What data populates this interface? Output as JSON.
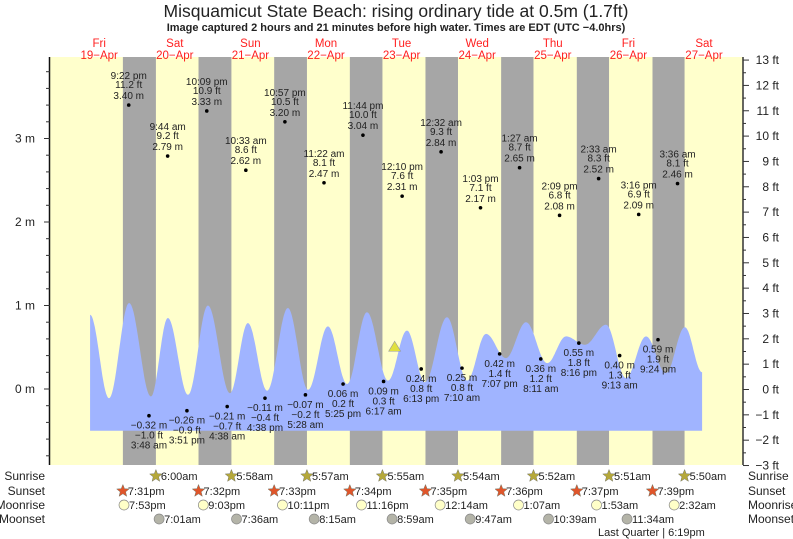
{
  "chart_data": {
    "type": "area",
    "title": "Misquamicut State Beach: rising  ordinary tide at 0.5m (1.7ft)",
    "subtitle": "Image captured 2 hours and 21 minutes before high water. Times are EDT (UTC −4.0hrs)",
    "time_unit": "hours from 20-Apr 00:00 EDT",
    "days": [
      {
        "dow": "Fri",
        "date": "19−Apr"
      },
      {
        "dow": "Sat",
        "date": "20−Apr"
      },
      {
        "dow": "Sun",
        "date": "21−Apr"
      },
      {
        "dow": "Mon",
        "date": "22−Apr"
      },
      {
        "dow": "Tue",
        "date": "23−Apr"
      },
      {
        "dow": "Wed",
        "date": "24−Apr"
      },
      {
        "dow": "Thu",
        "date": "25−Apr"
      },
      {
        "dow": "Fri",
        "date": "26−Apr"
      },
      {
        "dow": "Sat",
        "date": "27−Apr"
      }
    ],
    "y_left": {
      "unit": "m",
      "range": [
        -0.9,
        3.95
      ],
      "ticks": [
        "0 m",
        "1 m",
        "2 m",
        "3 m"
      ],
      "tick_values": [
        0,
        1,
        2,
        3
      ]
    },
    "y_right": {
      "unit": "ft",
      "range": [
        -3,
        13
      ],
      "ticks": [
        "−3 ft",
        "−2 ft",
        "−1 ft",
        "0 ft",
        "1 ft",
        "2 ft",
        "3 ft",
        "4 ft",
        "5 ft",
        "6 ft",
        "7 ft",
        "8 ft",
        "9 ft",
        "10 ft",
        "11 ft",
        "12 ft",
        "13 ft"
      ],
      "tick_values": [
        -3,
        -2,
        -1,
        0,
        1,
        2,
        3,
        4,
        5,
        6,
        7,
        8,
        9,
        10,
        11,
        12,
        13
      ]
    },
    "x_range": [
      -20,
      191
    ],
    "curve_base_m": -0.5,
    "curve_m": [
      [
        -14.9,
        0.89
      ],
      [
        -8.9,
        -0.11
      ],
      [
        -2.5,
        1.03
      ],
      [
        4.4,
        -0.09
      ],
      [
        9.8,
        0.85
      ],
      [
        16.2,
        -0.07
      ],
      [
        22.5,
        1.0
      ],
      [
        29.5,
        -0.05
      ],
      [
        35.2,
        0.79
      ],
      [
        41.3,
        -0.02
      ],
      [
        47.9,
        0.97
      ],
      [
        54.3,
        -0.01
      ],
      [
        60.6,
        0.75
      ],
      [
        66.7,
        0.06
      ],
      [
        73.0,
        0.92
      ],
      [
        79.7,
        0.1
      ],
      [
        85.7,
        0.7
      ],
      [
        91.4,
        0.08
      ],
      [
        98.4,
        0.86
      ],
      [
        104.8,
        0.1
      ],
      [
        110.8,
        0.66
      ],
      [
        117.1,
        0.37
      ],
      [
        123.5,
        0.8
      ],
      [
        130.2,
        0.31
      ],
      [
        136.2,
        0.63
      ],
      [
        142.2,
        0.53
      ],
      [
        148.9,
        0.77
      ],
      [
        155.2,
        0.13
      ],
      [
        161.6,
        0.63
      ],
      [
        167.9,
        0.19
      ],
      [
        173.9,
        0.74
      ],
      [
        179.4,
        0.2
      ]
    ],
    "tides": [
      {
        "type": "high",
        "h": -2.63,
        "time": "9:22 pm",
        "ft": "11.2 ft",
        "m": 3.4,
        "m_label": "3.40 m"
      },
      {
        "type": "low",
        "h": 3.8,
        "time": "3:48 am",
        "ft": "−1.0 ft",
        "m": -0.32,
        "m_label": "−0.32 m"
      },
      {
        "type": "high",
        "h": 9.73,
        "time": "9:44 am",
        "ft": "9.2 ft",
        "m": 2.79,
        "m_label": "2.79 m"
      },
      {
        "type": "low",
        "h": 15.85,
        "time": "3:51 pm",
        "ft": "−0.9 ft",
        "m": -0.26,
        "m_label": "−0.26 m"
      },
      {
        "type": "high",
        "h": 22.15,
        "time": "10:09 pm",
        "ft": "10.9 ft",
        "m": 3.33,
        "m_label": "3.33 m"
      },
      {
        "type": "low",
        "h": 28.63,
        "time": "4:38 am",
        "ft": "−0.7 ft",
        "m": -0.21,
        "m_label": "−0.21 m"
      },
      {
        "type": "high",
        "h": 34.55,
        "time": "10:33 am",
        "ft": "8.6 ft",
        "m": 2.62,
        "m_label": "2.62 m"
      },
      {
        "type": "low",
        "h": 40.63,
        "time": "4:38 pm",
        "ft": "−0.4 ft",
        "m": -0.11,
        "m_label": "−0.11 m"
      },
      {
        "type": "high",
        "h": 46.95,
        "time": "10:57 pm",
        "ft": "10.5 ft",
        "m": 3.2,
        "m_label": "3.20 m"
      },
      {
        "type": "low",
        "h": 53.47,
        "time": "5:28 am",
        "ft": "−0.2 ft",
        "m": -0.07,
        "m_label": "−0.07 m"
      },
      {
        "type": "high",
        "h": 59.37,
        "time": "11:22 am",
        "ft": "8.1 ft",
        "m": 2.47,
        "m_label": "2.47 m"
      },
      {
        "type": "low",
        "h": 65.42,
        "time": "5:25 pm",
        "ft": "0.2 ft",
        "m": 0.06,
        "m_label": "0.06 m"
      },
      {
        "type": "high",
        "h": 71.73,
        "time": "11:44 pm",
        "ft": "10.0 ft",
        "m": 3.04,
        "m_label": "3.04 m"
      },
      {
        "type": "low",
        "h": 78.28,
        "time": "6:17 am",
        "ft": "0.3 ft",
        "m": 0.09,
        "m_label": "0.09 m"
      },
      {
        "type": "high",
        "h": 84.17,
        "time": "12:10 pm",
        "ft": "7.6 ft",
        "m": 2.31,
        "m_label": "2.31 m"
      },
      {
        "type": "low",
        "h": 90.22,
        "time": "6:13 pm",
        "ft": "0.8 ft",
        "m": 0.24,
        "m_label": "0.24 m"
      },
      {
        "type": "high",
        "h": 96.53,
        "time": "12:32 am",
        "ft": "9.3 ft",
        "m": 2.84,
        "m_label": "2.84 m"
      },
      {
        "type": "low",
        "h": 103.17,
        "time": "7:10 am",
        "ft": "0.8 ft",
        "m": 0.25,
        "m_label": "0.25 m"
      },
      {
        "type": "high",
        "h": 109.05,
        "time": "1:03 pm",
        "ft": "7.1 ft",
        "m": 2.17,
        "m_label": "2.17 m"
      },
      {
        "type": "low",
        "h": 115.12,
        "time": "7:07 pm",
        "ft": "1.4 ft",
        "m": 0.42,
        "m_label": "0.42 m"
      },
      {
        "type": "high",
        "h": 121.45,
        "time": "1:27 am",
        "ft": "8.7 ft",
        "m": 2.65,
        "m_label": "2.65 m"
      },
      {
        "type": "low",
        "h": 128.18,
        "time": "8:11 am",
        "ft": "1.2 ft",
        "m": 0.36,
        "m_label": "0.36 m"
      },
      {
        "type": "high",
        "h": 134.15,
        "time": "2:09 pm",
        "ft": "6.8 ft",
        "m": 2.08,
        "m_label": "2.08 m"
      },
      {
        "type": "low",
        "h": 140.27,
        "time": "8:16 pm",
        "ft": "1.8 ft",
        "m": 0.55,
        "m_label": "0.55 m"
      },
      {
        "type": "high",
        "h": 146.55,
        "time": "2:33 am",
        "ft": "8.3 ft",
        "m": 2.52,
        "m_label": "2.52 m"
      },
      {
        "type": "low",
        "h": 153.22,
        "time": "9:13 am",
        "ft": "1.3 ft",
        "m": 0.4,
        "m_label": "0.40 m"
      },
      {
        "type": "high",
        "h": 159.27,
        "time": "3:16 pm",
        "ft": "6.9 ft",
        "m": 2.09,
        "m_label": "2.09 m"
      },
      {
        "type": "low",
        "h": 165.4,
        "time": "9:24 pm",
        "ft": "1.9 ft",
        "m": 0.59,
        "m_label": "0.59 m"
      },
      {
        "type": "high",
        "h": 171.6,
        "time": "3:36 am",
        "ft": "8.1 ft",
        "m": 2.46,
        "m_label": "2.46 m"
      }
    ],
    "current": {
      "h": 81.8,
      "m": 0.5
    },
    "rows": {
      "sunrise": {
        "label": "Sunrise",
        "events": [
          {
            "h": 6.0,
            "t": "6:00am"
          },
          {
            "h": 29.97,
            "t": "5:58am"
          },
          {
            "h": 53.95,
            "t": "5:57am"
          },
          {
            "h": 77.92,
            "t": "5:55am"
          },
          {
            "h": 101.9,
            "t": "5:54am"
          },
          {
            "h": 125.87,
            "t": "5:52am"
          },
          {
            "h": 149.85,
            "t": "5:51am"
          },
          {
            "h": 173.83,
            "t": "5:50am"
          }
        ]
      },
      "sunset": {
        "label": "Sunset",
        "events": [
          {
            "h": -4.48,
            "t": "7:31pm"
          },
          {
            "h": 19.53,
            "t": "7:32pm"
          },
          {
            "h": 43.55,
            "t": "7:33pm"
          },
          {
            "h": 67.57,
            "t": "7:34pm"
          },
          {
            "h": 91.58,
            "t": "7:35pm"
          },
          {
            "h": 115.6,
            "t": "7:36pm"
          },
          {
            "h": 139.62,
            "t": "7:37pm"
          },
          {
            "h": 163.65,
            "t": "7:39pm"
          }
        ]
      },
      "moonrise": {
        "label": "Moonrise",
        "events": [
          {
            "h": -4.12,
            "t": "7:53pm"
          },
          {
            "h": 21.05,
            "t": "9:03pm"
          },
          {
            "h": 46.18,
            "t": "10:11pm"
          },
          {
            "h": 71.27,
            "t": "11:16pm"
          },
          {
            "h": 96.23,
            "t": "12:14am"
          },
          {
            "h": 121.12,
            "t": "1:07am"
          },
          {
            "h": 145.88,
            "t": "1:53am"
          },
          {
            "h": 170.53,
            "t": "2:32am"
          }
        ]
      },
      "moonset": {
        "label": "Moonset",
        "events": [
          {
            "h": 7.02,
            "t": "7:01am"
          },
          {
            "h": 31.6,
            "t": "7:36am"
          },
          {
            "h": 56.25,
            "t": "8:15am"
          },
          {
            "h": 80.98,
            "t": "8:59am"
          },
          {
            "h": 105.78,
            "t": "9:47am"
          },
          {
            "h": 130.65,
            "t": "10:39am"
          },
          {
            "h": 155.57,
            "t": "11:34am"
          }
        ]
      }
    },
    "moon_phase": "Last Quarter | 6:19pm",
    "colors": {
      "day": "#ffffcc",
      "night": "#a6a6a6",
      "water": "#a0b4ff",
      "sunrise": "#b5a83a",
      "sunset": "#e0552a",
      "moonrise": "#ffffc8",
      "moonset": "#b4b4a8",
      "day_label": "#ff2020",
      "current": "#e0e040"
    }
  }
}
